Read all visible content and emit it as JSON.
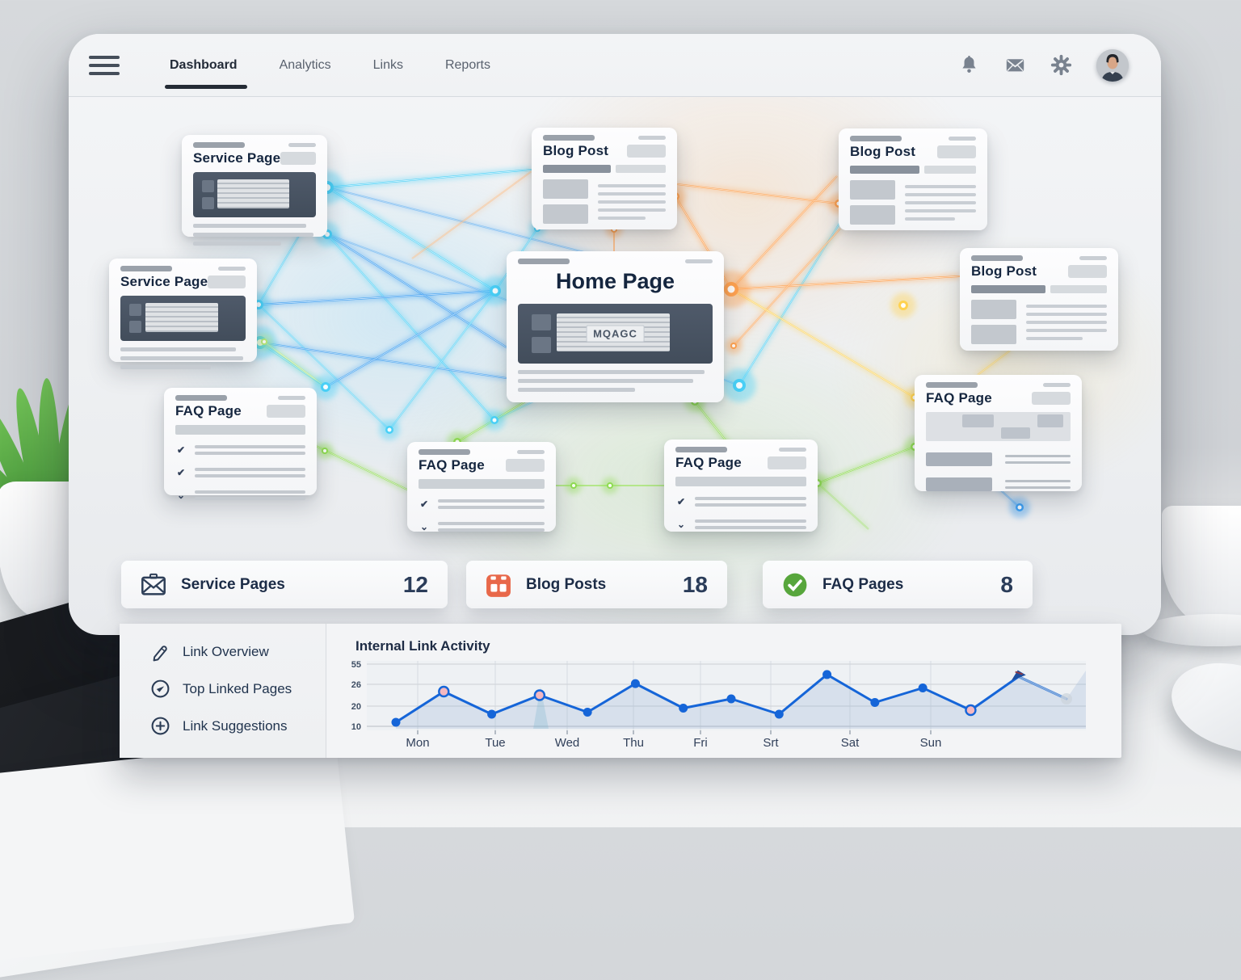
{
  "nav": {
    "items": [
      {
        "label": "Dashboard",
        "active": true
      },
      {
        "label": "Analytics",
        "active": false
      },
      {
        "label": "Links",
        "active": false
      },
      {
        "label": "Reports",
        "active": false
      }
    ],
    "icons": [
      {
        "name": "bell-icon"
      },
      {
        "name": "mail-icon"
      },
      {
        "name": "gear-icon"
      },
      {
        "name": "avatar"
      }
    ]
  },
  "network": {
    "cards": [
      {
        "id": "service-top-left",
        "type": "service",
        "title": "Service Page"
      },
      {
        "id": "service-left",
        "type": "service",
        "title": "Service Page"
      },
      {
        "id": "faq-left",
        "type": "faq3",
        "title": "FAQ Page"
      },
      {
        "id": "blog-top-center",
        "type": "blog",
        "title": "Blog Post"
      },
      {
        "id": "home",
        "type": "home",
        "title": "Home Page",
        "image_label": "MQAGC"
      },
      {
        "id": "blog-top-right",
        "type": "blog",
        "title": "Blog Post"
      },
      {
        "id": "blog-right",
        "type": "blog",
        "title": "Blog Post"
      },
      {
        "id": "faq-center",
        "type": "faq",
        "title": "FAQ Page"
      },
      {
        "id": "faq-center-right",
        "type": "faq",
        "title": "FAQ Page"
      },
      {
        "id": "faq-right",
        "type": "faq2",
        "title": "FAQ Page"
      }
    ]
  },
  "stats": [
    {
      "icon": "envelope-icon",
      "label": "Service Pages",
      "value": "12",
      "icon_color": "#2e3f58"
    },
    {
      "icon": "book-icon",
      "label": "Blog Posts",
      "value": "18",
      "icon_color": "#e8684a"
    },
    {
      "icon": "check-circle-icon",
      "label": "FAQ Pages",
      "value": "8",
      "icon_color": "#57a63c"
    }
  ],
  "panel": {
    "menu": [
      {
        "icon": "pencil-link-icon",
        "label": "Link Overview"
      },
      {
        "icon": "check-circle-icon",
        "label": "Top Linked Pages"
      },
      {
        "icon": "plus-circle-icon",
        "label": "Link Suggestions"
      }
    ]
  },
  "chart_data": {
    "type": "line",
    "title": "Internal Link Activity",
    "x_labels": [
      "Mon",
      "Tue",
      "Wed",
      "Thu",
      "Fri",
      "Srt",
      "Sat",
      "Sun"
    ],
    "y_ticks": [
      55,
      26,
      20,
      10
    ],
    "ylim": [
      10,
      55
    ],
    "grid": true,
    "area_fill": true,
    "legend": "none",
    "line_color": "#1565d8",
    "series": [
      {
        "name": "Internal Link Activity",
        "values": [
          12,
          24,
          16,
          23,
          17,
          27,
          19,
          22,
          16,
          40,
          21,
          25,
          18,
          37,
          22
        ]
      }
    ],
    "point_styles": [
      "solid",
      "pink",
      "solid",
      "pink",
      "solid",
      "solid",
      "solid",
      "solid",
      "solid",
      "solid",
      "solid",
      "solid",
      "pink",
      "arrow",
      "pale"
    ]
  },
  "colors": {
    "accent_blue": "#1565d8",
    "glow_cyan": "#49d0f7",
    "glow_orange": "#ffa14f",
    "glow_green": "#8fdb52",
    "navy": "#1f2d47"
  }
}
